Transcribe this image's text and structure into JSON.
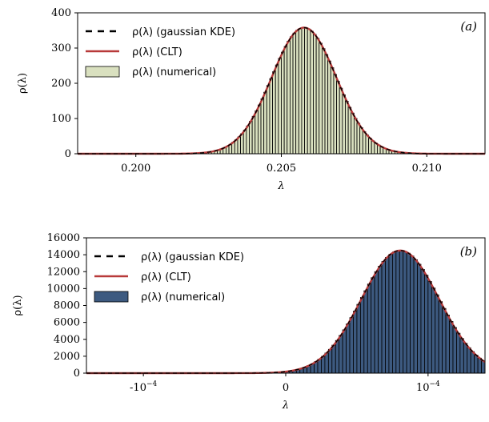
{
  "chart_data": [
    {
      "type": "bar",
      "panel_label": "(a)",
      "xlabel": "λ",
      "ylabel": "ρ(λ)",
      "xlim": [
        0.198,
        0.212
      ],
      "ylim": [
        0,
        400
      ],
      "xticks": [
        0.2,
        0.205,
        0.21
      ],
      "xtick_labels": [
        "0.200",
        "0.205",
        "0.210"
      ],
      "yticks": [
        0,
        100,
        200,
        300,
        400
      ],
      "ytick_labels": [
        "0",
        "100",
        "200",
        "300",
        "400"
      ],
      "grid": false,
      "legend_position": "top-left",
      "distribution": {
        "mean": 0.20578,
        "std": 0.00111,
        "peak": 358
      },
      "histogram": {
        "start": 0.2025,
        "end": 0.2095,
        "bins": 70
      },
      "series": [
        {
          "name": "ρ(λ) (gaussian KDE)",
          "kind": "line",
          "style": "dashed",
          "color": "#000000"
        },
        {
          "name": "ρ(λ) (CLT)",
          "kind": "line",
          "style": "solid",
          "color": "#b83a3a"
        },
        {
          "name": "ρ(λ) (numerical)",
          "kind": "histogram",
          "color": "#d9e0bf"
        }
      ]
    },
    {
      "type": "bar",
      "panel_label": "(b)",
      "xlabel": "λ",
      "ylabel": "ρ(λ)",
      "xlim": [
        -0.00014,
        0.00014
      ],
      "ylim": [
        0,
        16000
      ],
      "xticks": [
        -0.0001,
        0,
        0.0001
      ],
      "xtick_labels": [
        "-10−4",
        "0",
        "10−4"
      ],
      "yticks": [
        0,
        2000,
        4000,
        6000,
        8000,
        10000,
        12000,
        14000,
        16000
      ],
      "ytick_labels": [
        "0",
        "2000",
        "4000",
        "6000",
        "8000",
        "10000",
        "12000",
        "14000",
        "16000"
      ],
      "grid": false,
      "legend_position": "top-left",
      "distribution": {
        "mean": 8.05e-05,
        "std": 2.72e-05,
        "peak": 14500
      },
      "histogram": {
        "start": 0.0,
        "end": 0.00014,
        "bins": 56
      },
      "series": [
        {
          "name": "ρ(λ) (gaussian KDE)",
          "kind": "line",
          "style": "dashed",
          "color": "#000000"
        },
        {
          "name": "ρ(λ) (CLT)",
          "kind": "line",
          "style": "solid",
          "color": "#b83a3a"
        },
        {
          "name": "ρ(λ) (numerical)",
          "kind": "histogram",
          "color": "#3d5a80"
        }
      ]
    }
  ]
}
